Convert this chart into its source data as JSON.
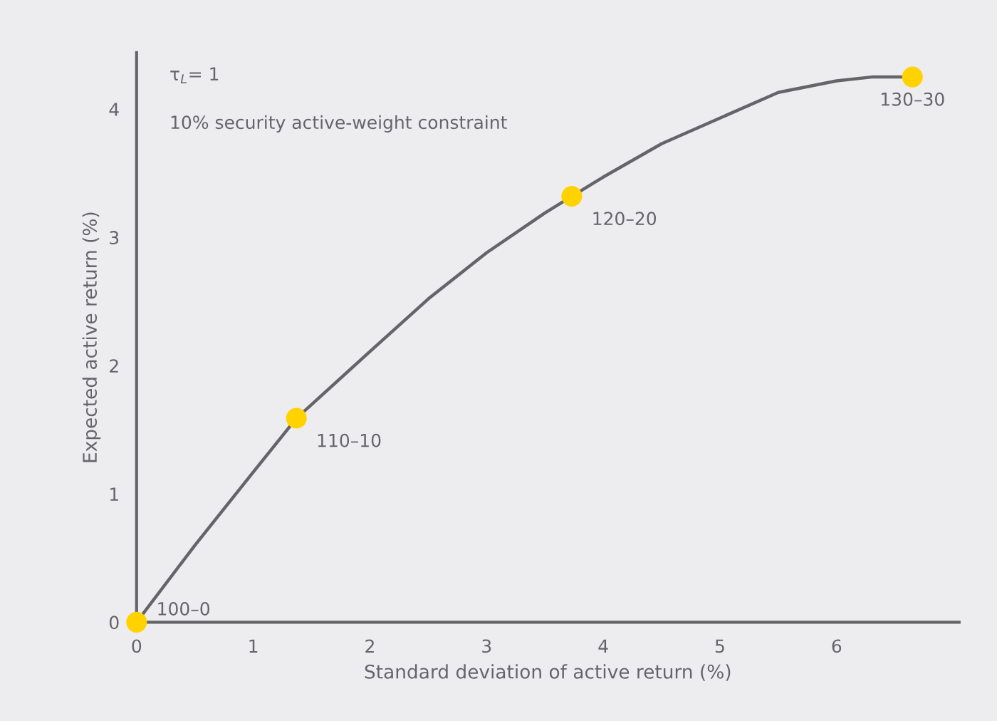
{
  "chart_data": {
    "type": "line",
    "xlabel": "Standard deviation of active return (%)",
    "ylabel": "Expected active return (%)",
    "xlim": [
      0,
      7.05
    ],
    "ylim": [
      0,
      4.44
    ],
    "xticks": [
      0,
      1,
      2,
      3,
      4,
      5,
      6
    ],
    "yticks": [
      0,
      1,
      2,
      3,
      4
    ],
    "grid": false,
    "legend": false,
    "series": [
      {
        "color": "#646469",
        "marker": "none",
        "x": [
          0,
          0.5,
          1,
          1.37,
          2,
          2.5,
          3,
          3.5,
          3.73,
          4,
          4.5,
          5,
          5.5,
          6,
          6.3,
          6.65
        ],
        "values": [
          0,
          0.6,
          1.17,
          1.59,
          2.11,
          2.52,
          2.88,
          3.19,
          3.32,
          3.47,
          3.73,
          3.93,
          4.13,
          4.22,
          4.25,
          4.25
        ]
      },
      {
        "type": "scatter",
        "color": "#ffd200",
        "marker": "circle",
        "x": [
          0,
          1.37,
          3.73,
          6.65
        ],
        "values": [
          0,
          1.59,
          3.32,
          4.25
        ]
      }
    ],
    "annotations": [
      "τ$_{L}$= 1",
      "10% security active-weight constraint",
      {
        "text": "100–0",
        "x": 0,
        "y": 0
      },
      {
        "text": "110–10",
        "x": 1.37,
        "y": 1.59
      },
      {
        "text": "120–20",
        "x": 3.73,
        "y": 3.32
      },
      {
        "text": "130–30",
        "x": 6.65,
        "y": 4.25
      }
    ]
  }
}
